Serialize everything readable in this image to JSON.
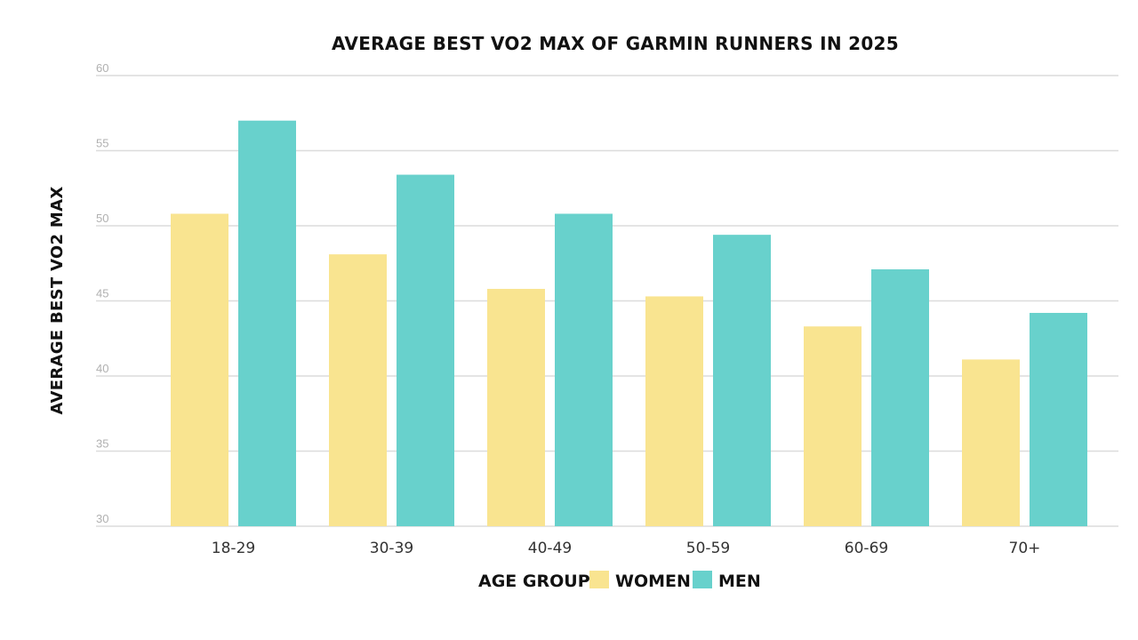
{
  "chart_data": {
    "type": "bar",
    "title": "AVERAGE BEST VO2 MAX OF GARMIN RUNNERS IN 2025",
    "ylabel": "AVERAGE BEST VO2 MAX",
    "ylim": [
      30,
      60
    ],
    "yticks": [
      30,
      35,
      40,
      45,
      50,
      55,
      60
    ],
    "grid": true,
    "legend_placement": "bottom",
    "legend_title": "AGE GROUP:",
    "categories": [
      "18-29",
      "30-39",
      "40-49",
      "50-59",
      "60-69",
      "70+"
    ],
    "series": [
      {
        "name": "WOMEN",
        "color": "#f9e490",
        "values": [
          50.8,
          48.1,
          45.8,
          45.3,
          43.3,
          41.1
        ]
      },
      {
        "name": "MEN",
        "color": "#68d1cc",
        "values": [
          57.0,
          53.4,
          50.8,
          49.4,
          47.1,
          44.2
        ]
      }
    ]
  }
}
